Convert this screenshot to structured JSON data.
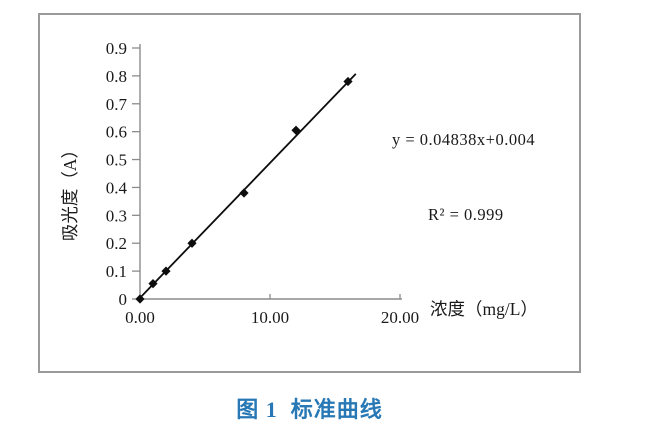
{
  "chart_data": {
    "type": "scatter",
    "title": "",
    "x": [
      0,
      1,
      2,
      4,
      8,
      12,
      16
    ],
    "y": [
      0,
      0.055,
      0.1,
      0.2,
      0.38,
      0.605,
      0.78
    ],
    "xlabel": "浓度（mg/L）",
    "ylabel": "吸光度（A）",
    "xlim": [
      0,
      20
    ],
    "ylim": [
      0,
      0.9
    ],
    "grid": "off",
    "marker": "diamond",
    "x_ticks": [
      {
        "value": 0,
        "label": "0.00"
      },
      {
        "value": 10,
        "label": "10.00"
      },
      {
        "value": 20,
        "label": "20.00"
      }
    ],
    "y_ticks": [
      {
        "value": 0.0,
        "label": "0"
      },
      {
        "value": 0.1,
        "label": "0.1"
      },
      {
        "value": 0.2,
        "label": "0.2"
      },
      {
        "value": 0.3,
        "label": "0.3"
      },
      {
        "value": 0.4,
        "label": "0.4"
      },
      {
        "value": 0.5,
        "label": "0.5"
      },
      {
        "value": 0.6,
        "label": "0.6"
      },
      {
        "value": 0.7,
        "label": "0.7"
      },
      {
        "value": 0.8,
        "label": "0.8"
      },
      {
        "value": 0.9,
        "label": "0.9"
      }
    ],
    "trendline": {
      "slope": 0.04838,
      "intercept": 0.004,
      "x_start": 0,
      "x_end": 16.6
    },
    "equation": "y = 0.04838x+0.004",
    "r_squared": "R² = 0.999",
    "colors": {
      "points": "#0d0d0d",
      "trendline": "#0d0d0d",
      "axis": "#8c8c8c",
      "text": "#1a1a1a"
    }
  },
  "caption": {
    "text": "图 1  标准曲线",
    "color": "#2878b5"
  }
}
